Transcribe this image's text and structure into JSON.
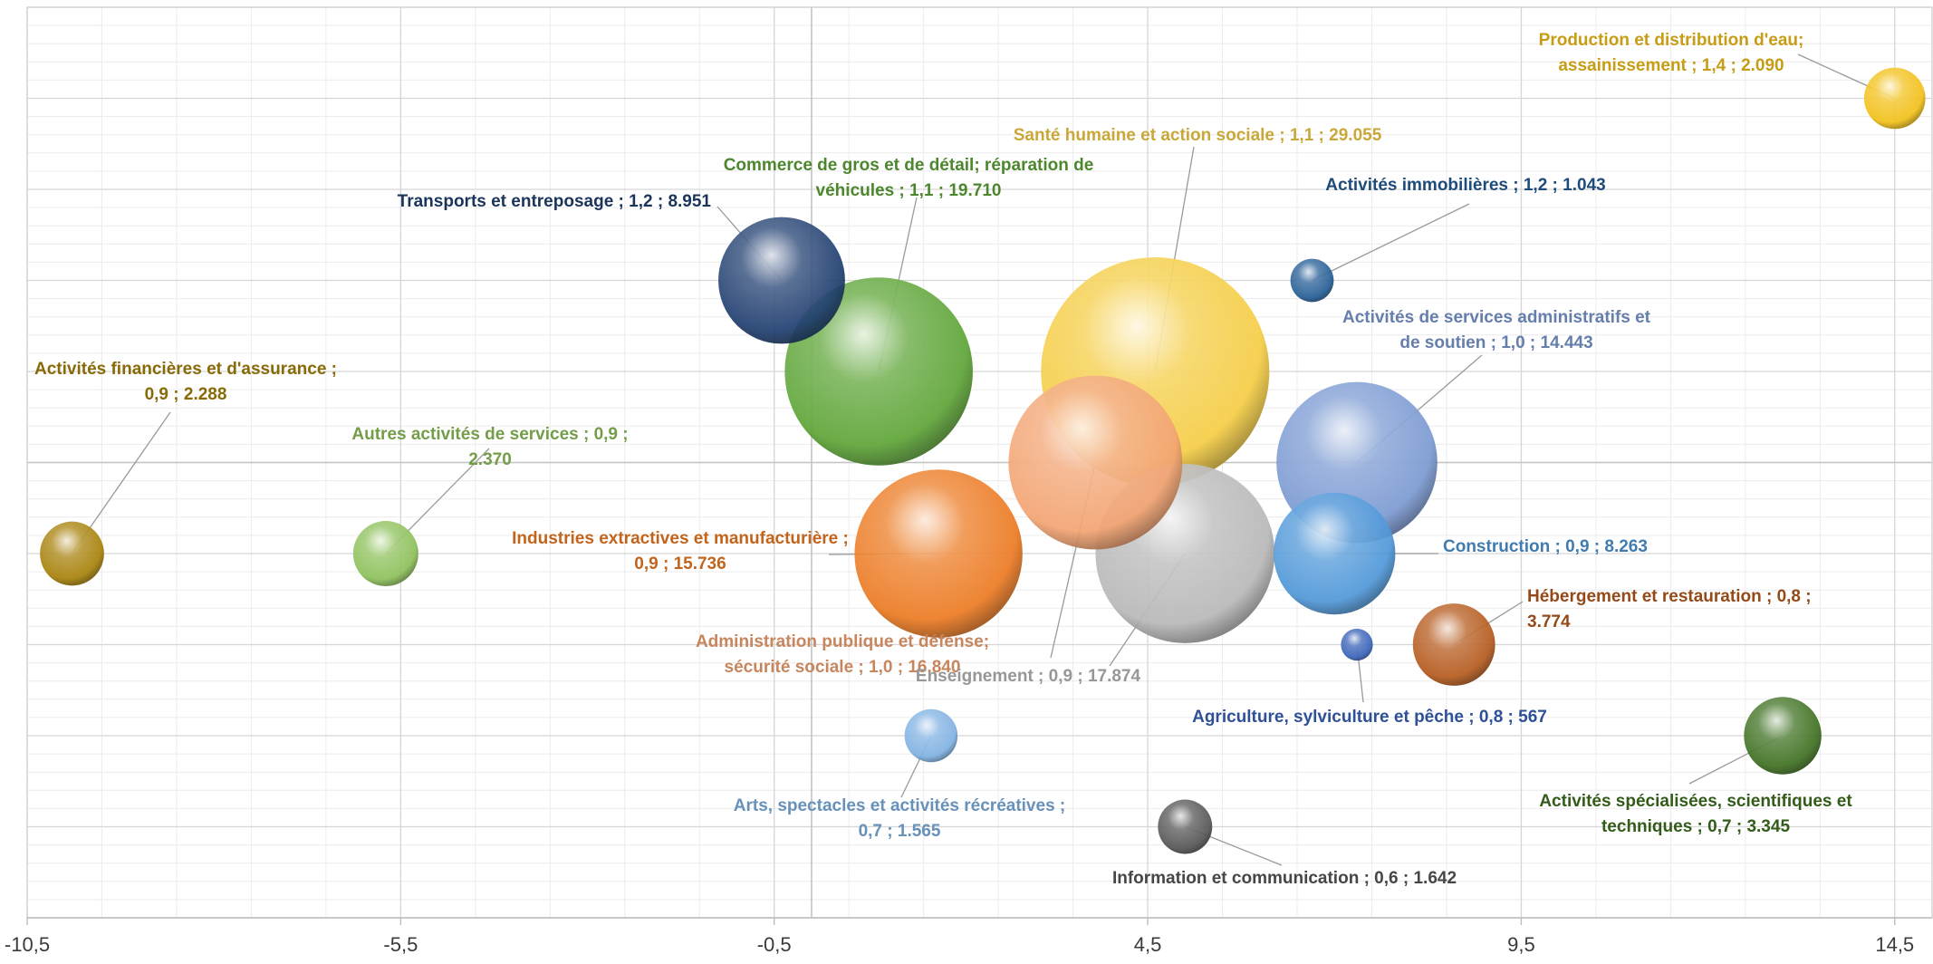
{
  "chart_data": {
    "type": "bubble",
    "title": "",
    "xlabel": "",
    "ylabel": "",
    "xlim": [
      -10.5,
      15
    ],
    "ylim": [
      0.5,
      1.5
    ],
    "x_ticks": [
      "-10,5",
      "-5,5",
      "-0,5",
      "4,5",
      "9,5",
      "14,5"
    ],
    "x_tick_values": [
      -10.5,
      -5.5,
      -0.5,
      4.5,
      9.5,
      14.5
    ],
    "gridlines": true,
    "legend": "none",
    "series": [
      {
        "label": "Production et distribution d'eau; assainissement ; 1,4 ; 2.090",
        "x": 14.5,
        "y": 1.4,
        "size": 2090,
        "color": "#f2c018"
      },
      {
        "label": "Santé humaine et action sociale ; 1,1 ; 29.055",
        "x": 4.6,
        "y": 1.1,
        "size": 29055,
        "color": "#f5cd45"
      },
      {
        "label": "Commerce de gros et de détail; réparation de véhicules ; 1,1 ; 19.710",
        "x": 0.9,
        "y": 1.1,
        "size": 19710,
        "color": "#5ea537"
      },
      {
        "label": "Transports et entreposage ; 1,2 ; 8.951",
        "x": -0.4,
        "y": 1.2,
        "size": 8951,
        "color": "#203f70"
      },
      {
        "label": "Activités immobilières ; 1,2 ; 1.043",
        "x": 6.7,
        "y": 1.2,
        "size": 1043,
        "color": "#245d95"
      },
      {
        "label": "Activités de services administratifs et de soutien ; 1,0 ; 14.443",
        "x": 7.3,
        "y": 1.0,
        "size": 14443,
        "color": "#7b9ad2"
      },
      {
        "label": "Activités financières et d'assurance ; 0,9 ; 2.288",
        "x": -9.9,
        "y": 0.9,
        "size": 2288,
        "color": "#a7810a"
      },
      {
        "label": "Autres activités de services ; 0,9 ; 2.370",
        "x": -5.7,
        "y": 0.9,
        "size": 2370,
        "color": "#8dc05a"
      },
      {
        "label": "Industries extractives et manufacturière ; 0,9 ; 15.736",
        "x": 1.7,
        "y": 0.9,
        "size": 15736,
        "color": "#ec7a22"
      },
      {
        "label": "Administration publique et défense; sécurité sociale ; 1,0 ; 16.840",
        "x": 3.8,
        "y": 1.0,
        "size": 16840,
        "color": "#f3a472"
      },
      {
        "label": "Enseignement ; 0,9 ; 17.874",
        "x": 5.0,
        "y": 0.9,
        "size": 17874,
        "color": "#b8b8b8"
      },
      {
        "label": "Construction ; 0,9 ; 8.263",
        "x": 7.0,
        "y": 0.9,
        "size": 8263,
        "color": "#4f97d8"
      },
      {
        "label": "Hébergement et restauration ; 0,8 ; 3.774",
        "x": 8.6,
        "y": 0.8,
        "size": 3774,
        "color": "#b55a1d"
      },
      {
        "label": "Agriculture, sylviculture et pêche ; 0,8 ; 567",
        "x": 7.3,
        "y": 0.8,
        "size": 567,
        "color": "#3862b8"
      },
      {
        "label": "Arts, spectacles et activités récréatives ; 0,7 ; 1.565",
        "x": 1.6,
        "y": 0.7,
        "size": 1565,
        "color": "#7fb1e2"
      },
      {
        "label": "Activités spécialisées, scientifiques et techniques ; 0,7 ; 3.345",
        "x": 13.0,
        "y": 0.7,
        "size": 3345,
        "color": "#3e7020"
      },
      {
        "label": "Information et communication ; 0,6 ; 1.642",
        "x": 5.0,
        "y": 0.6,
        "size": 1642,
        "color": "#555555"
      }
    ]
  }
}
